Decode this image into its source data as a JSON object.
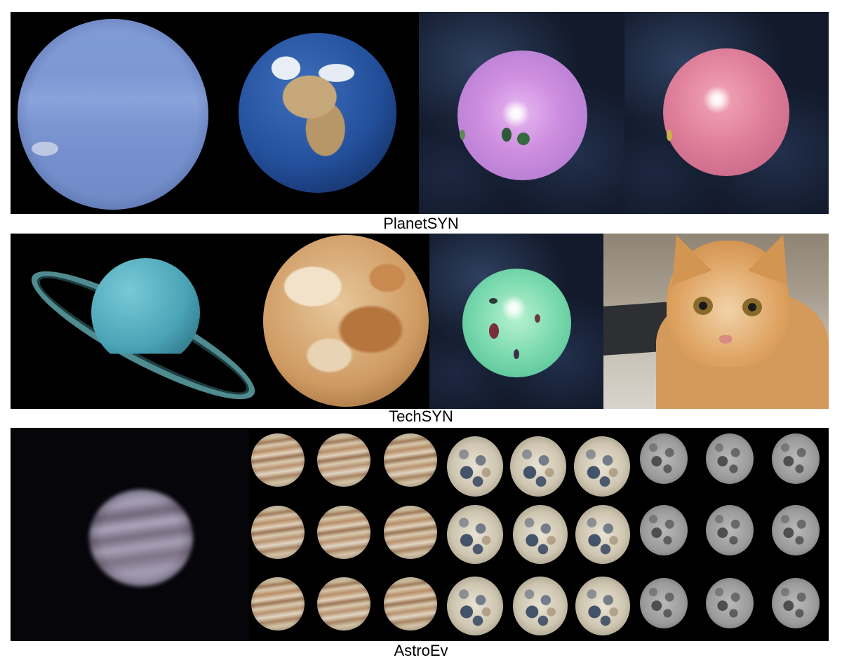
{
  "captions": {
    "row1": "PlanetSYN",
    "row2": "TechSYN",
    "row3": "AstroEv"
  },
  "colors": {
    "background": "#ffffff",
    "space": "#000000",
    "caption_text": "#000000"
  },
  "panels": [
    {
      "name": "PlanetSYN",
      "images": [
        "neptune-photo",
        "earth-photo",
        "synthetic-purple-sphere",
        "synthetic-pink-sphere"
      ]
    },
    {
      "name": "TechSYN",
      "images": [
        "ringed-planet-render",
        "cloudy-tan-planet-render",
        "synthetic-green-sphere",
        "orange-cat-photo"
      ]
    },
    {
      "name": "AstroEv",
      "images": [
        "blurry-jupiter-photo",
        "jupiter-grid-3x3",
        "color-moon-grid-3x3",
        "grey-moon-grid-3x3"
      ]
    }
  ]
}
